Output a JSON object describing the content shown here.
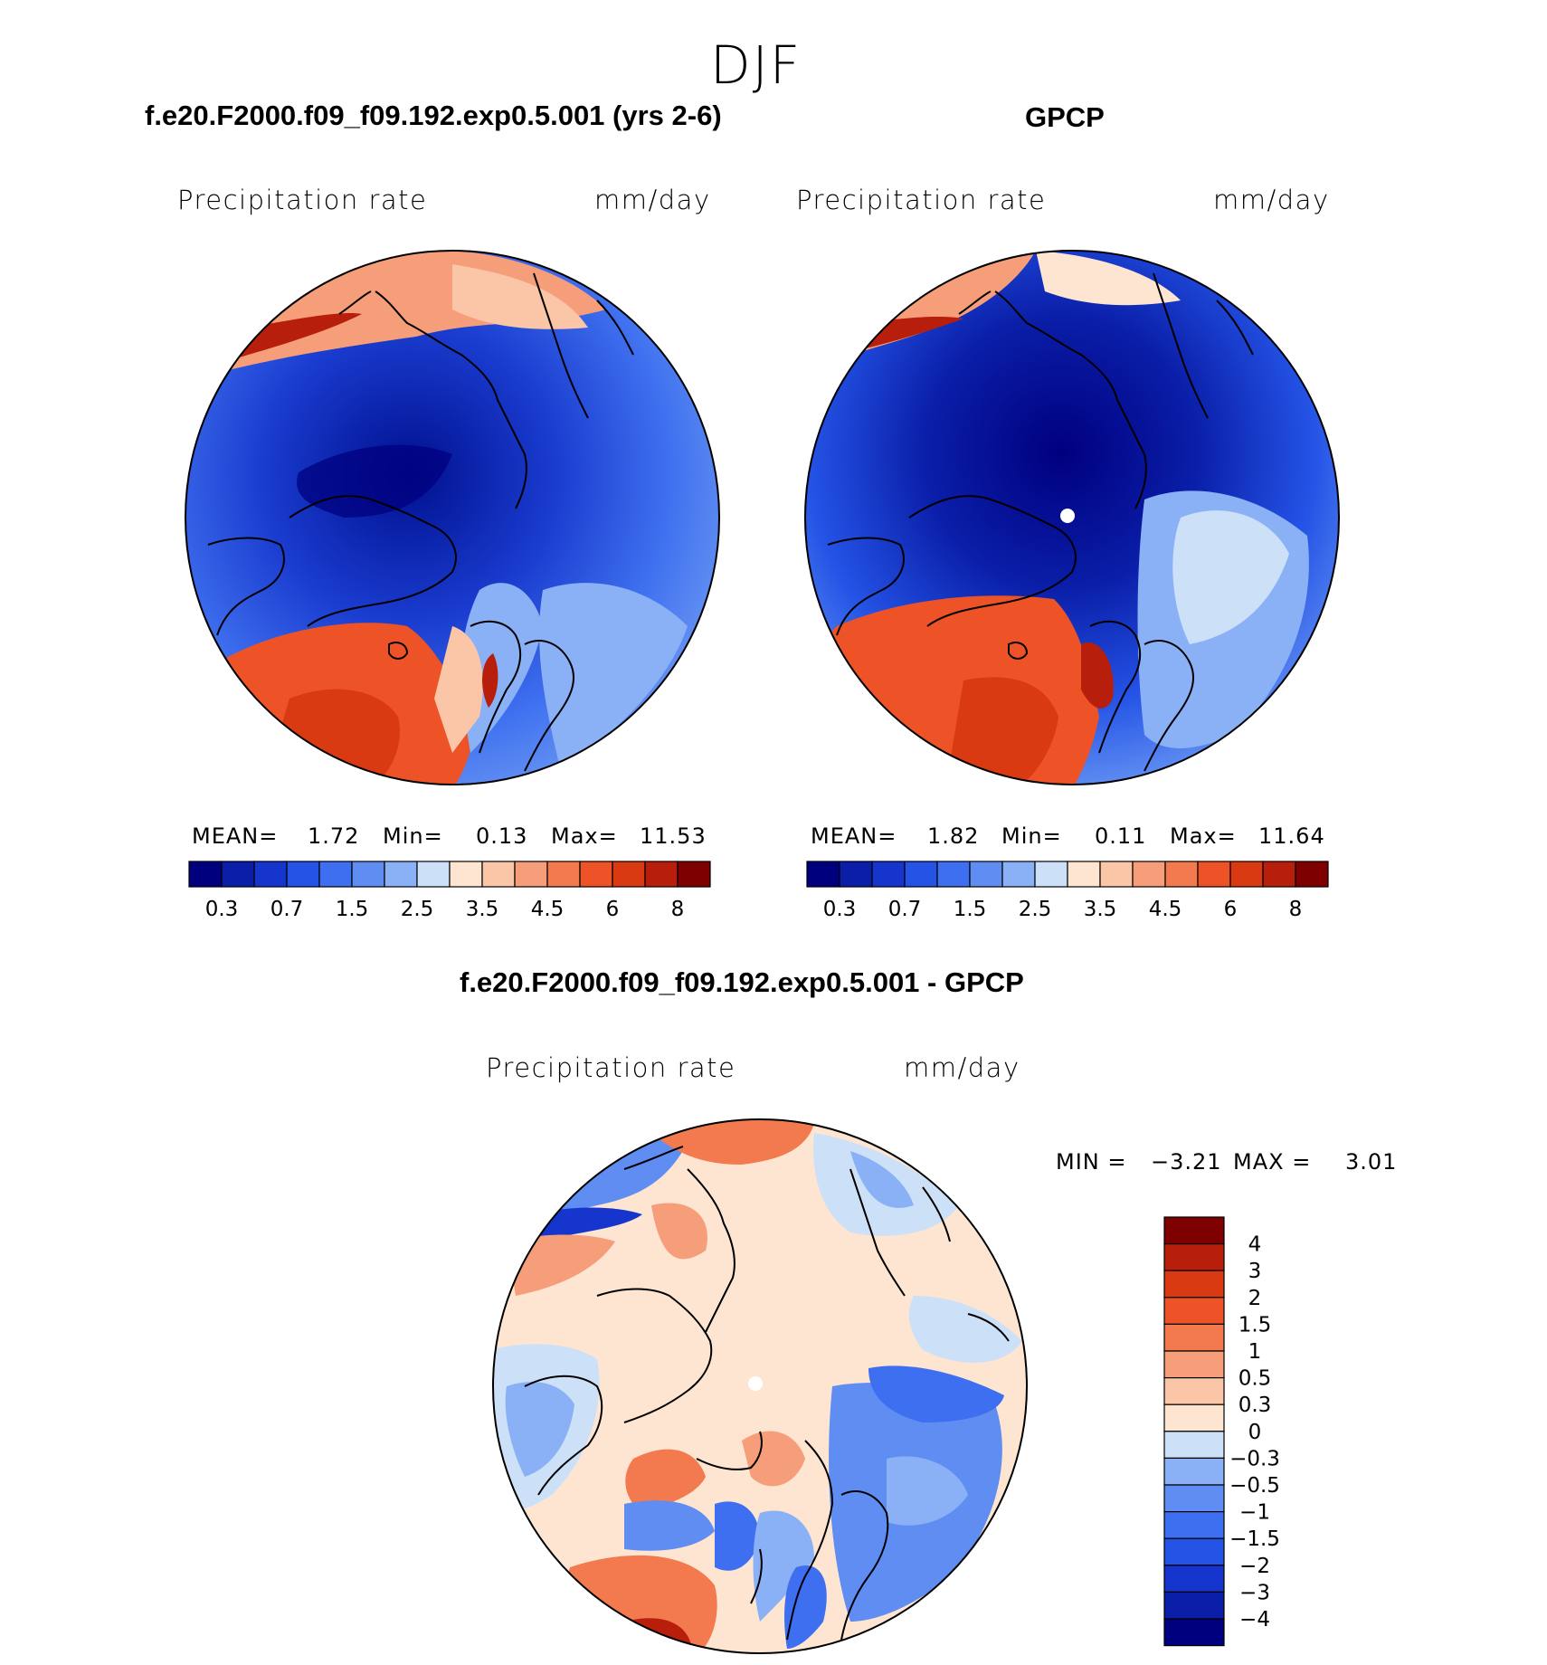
{
  "season": "DJF",
  "panels": [
    {
      "title": "f.e20.F2000.f09_f09.192.exp0.5.001 (yrs 2-6)",
      "var_label": "Precipitation rate",
      "units": "mm/day",
      "stats": {
        "mean_label": "MEAN=",
        "mean": "1.72",
        "min_label": "Min=",
        "min": "0.13",
        "max_label": "Max=",
        "max": "11.53"
      }
    },
    {
      "title": "GPCP",
      "var_label": "Precipitation rate",
      "units": "mm/day",
      "stats": {
        "mean_label": "MEAN=",
        "mean": "1.82",
        "min_label": "Min=",
        "min": "0.11",
        "max_label": "Max=",
        "max": "11.64"
      }
    },
    {
      "title": "f.e20.F2000.f09_f09.192.exp0.5.001 - GPCP",
      "var_label": "Precipitation rate",
      "units": "mm/day",
      "stats": {
        "min_label": "MIN =",
        "min": "−3.21",
        "max_label": "MAX =",
        "max": "3.01"
      }
    }
  ],
  "colorbar_abs": {
    "colors": [
      "#00007f",
      "#0a1ea8",
      "#1535cc",
      "#2453e6",
      "#3d6ff0",
      "#5f8df2",
      "#8ab0f5",
      "#cce1f8",
      "#fde5d2",
      "#fbc5a8",
      "#f69d79",
      "#f27a4e",
      "#ee5327",
      "#d93a12",
      "#b81e0c",
      "#7f0000"
    ],
    "tick_labels": [
      "0.3",
      "0.7",
      "1.5",
      "2.5",
      "3.5",
      "4.5",
      "6",
      "8"
    ]
  },
  "colorbar_diff": {
    "colors": [
      "#00007f",
      "#0a1ea8",
      "#1535cc",
      "#2453e6",
      "#3d6ff0",
      "#5f8df2",
      "#8ab0f5",
      "#cce1f8",
      "#fde5d2",
      "#fbc5a8",
      "#f69d79",
      "#f27a4e",
      "#ee5327",
      "#d93a12",
      "#b81e0c",
      "#7f0000"
    ],
    "tick_labels": [
      "4",
      "3",
      "2",
      "1.5",
      "1",
      "0.5",
      "0.3",
      "0",
      "−0.3",
      "−0.5",
      "−1",
      "−1.5",
      "−2",
      "−3",
      "−4"
    ]
  },
  "map_fill": {
    "panel1": "#2a55dd",
    "panel2": "#1e46d0",
    "panel3": "#fde5d2"
  }
}
